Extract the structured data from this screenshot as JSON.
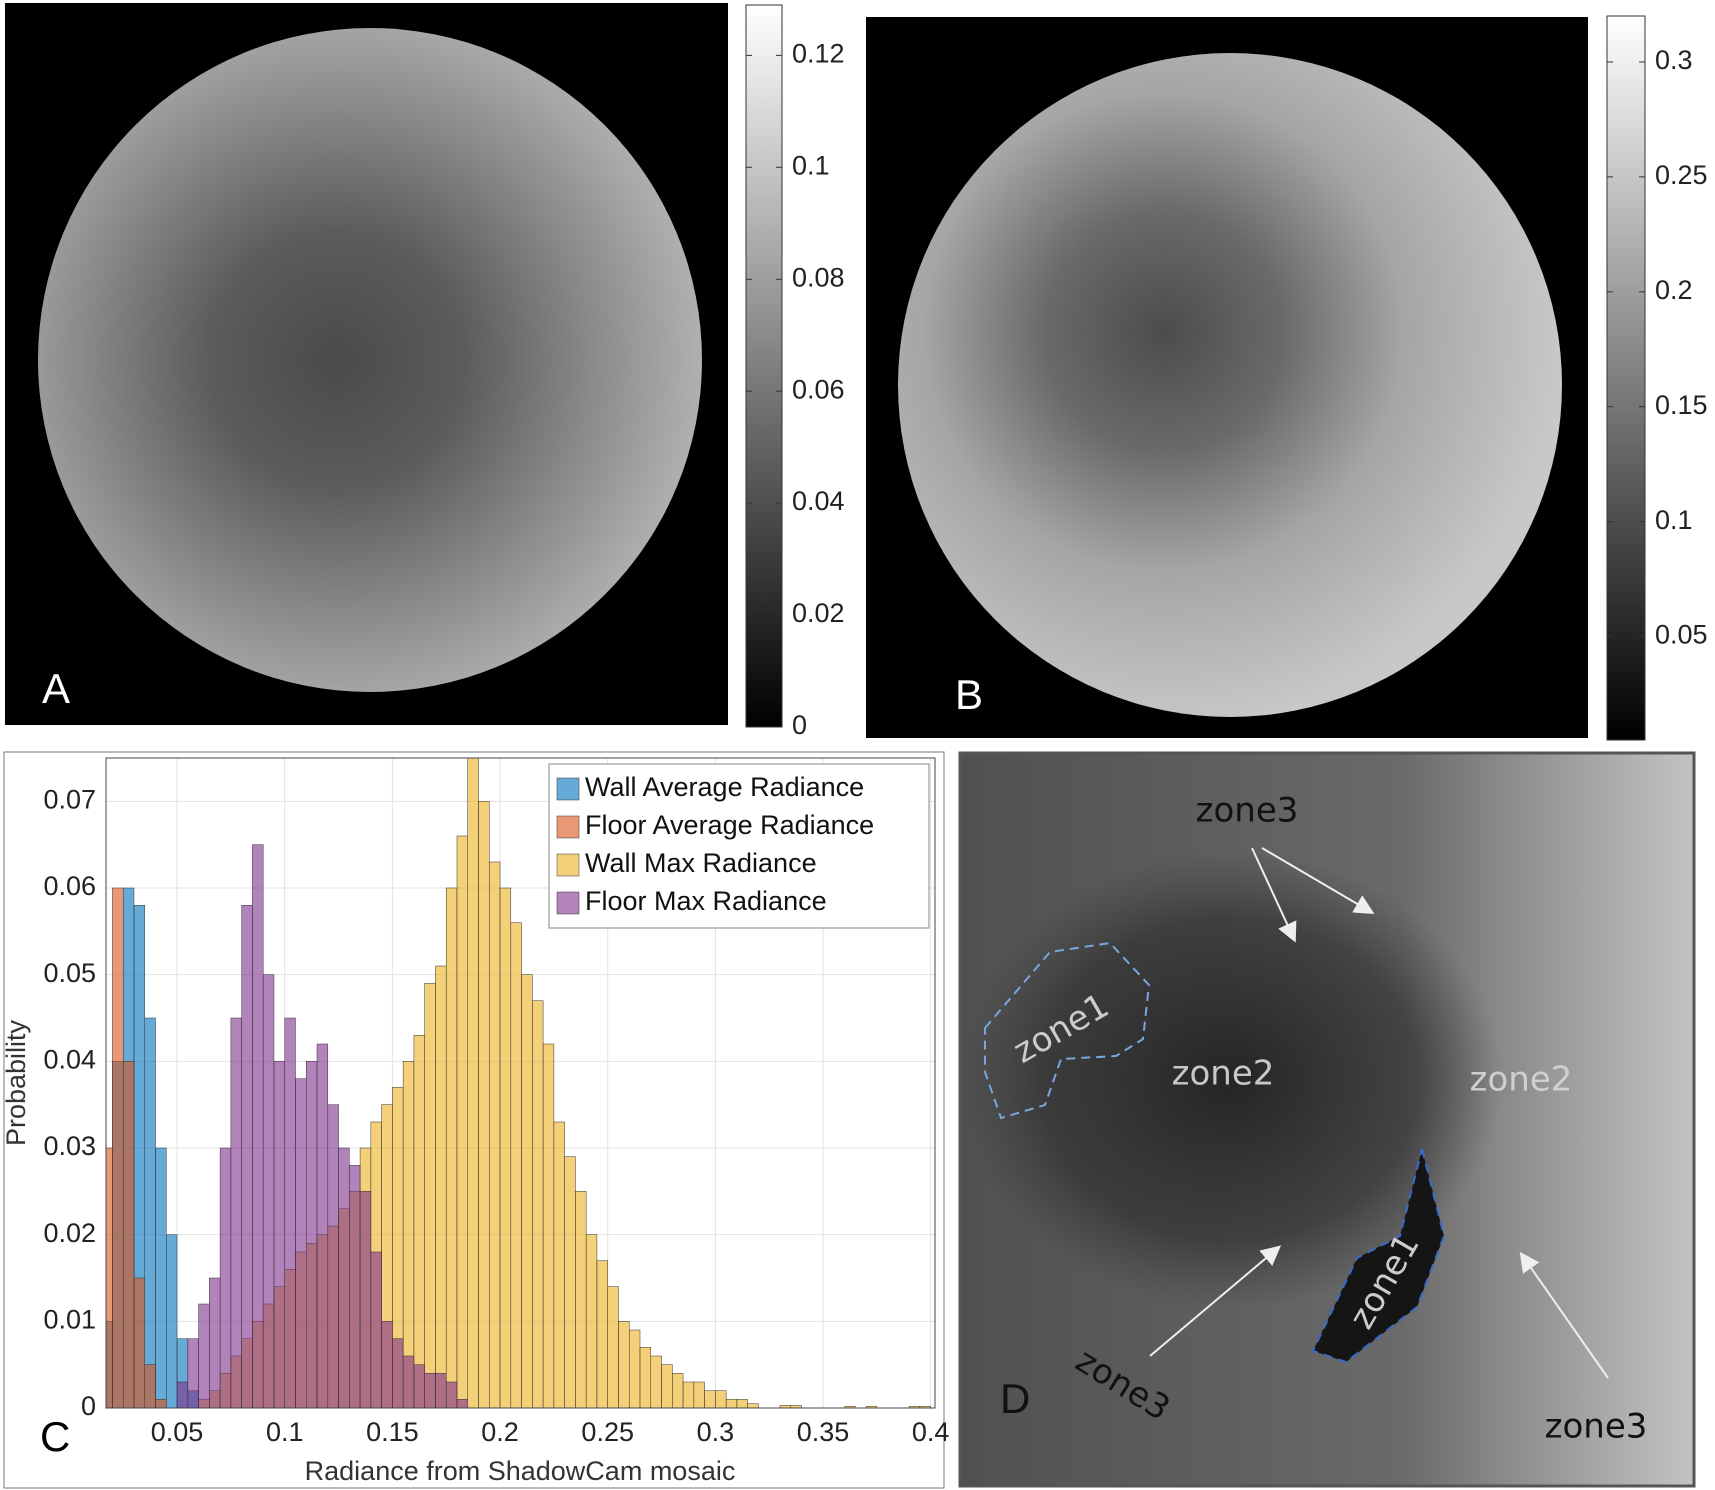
{
  "chart_data": [
    {
      "type": "image",
      "label": "A",
      "colorbar": {
        "ylim": [
          0,
          0.129
        ],
        "yticks": [
          0,
          0.02,
          0.04,
          0.06,
          0.08,
          0.1,
          0.12
        ]
      }
    },
    {
      "type": "image",
      "label": "B",
      "colorbar": {
        "ylim": [
          0.005,
          0.32
        ],
        "yticks": [
          0.05,
          0.1,
          0.15,
          0.2,
          0.25,
          0.3
        ]
      }
    },
    {
      "type": "histogram",
      "label": "C",
      "xlabel": "Radiance from ShadowCam mosaic",
      "ylabel": "Probability",
      "xlim": [
        0.017,
        0.402
      ],
      "ylim": [
        0,
        0.075
      ],
      "xticks": [
        0.05,
        0.1,
        0.15,
        0.2,
        0.25,
        0.3,
        0.35,
        0.4
      ],
      "yticks": [
        0,
        0.01,
        0.02,
        0.03,
        0.04,
        0.05,
        0.06,
        0.07
      ],
      "grid": true,
      "legend": "upper right",
      "bins": [
        0.015,
        0.02,
        0.025,
        0.03,
        0.035,
        0.04,
        0.045,
        0.05,
        0.055,
        0.06,
        0.065,
        0.07,
        0.075,
        0.08,
        0.085,
        0.09,
        0.095,
        0.1,
        0.105,
        0.11,
        0.115,
        0.12,
        0.125,
        0.13,
        0.135,
        0.14,
        0.145,
        0.15,
        0.155,
        0.16,
        0.165,
        0.17,
        0.175,
        0.18,
        0.185,
        0.19,
        0.195,
        0.2,
        0.205,
        0.21,
        0.215,
        0.22,
        0.225,
        0.23,
        0.235,
        0.24,
        0.245,
        0.25,
        0.255,
        0.26,
        0.265,
        0.27,
        0.275,
        0.28,
        0.285,
        0.29,
        0.295,
        0.3,
        0.305,
        0.31,
        0.315,
        0.32,
        0.325,
        0.33,
        0.335,
        0.34,
        0.345,
        0.35,
        0.355,
        0.36,
        0.365,
        0.37,
        0.375,
        0.38,
        0.385,
        0.39,
        0.395,
        0.4
      ],
      "series": [
        {
          "name": "Wall Average Radiance",
          "color": "#0072BD",
          "values": [
            0.01,
            0.04,
            0.06,
            0.058,
            0.045,
            0.03,
            0.02,
            0.008,
            0.002,
            0,
            0,
            0,
            0,
            0,
            0,
            0,
            0,
            0,
            0,
            0,
            0,
            0,
            0,
            0,
            0,
            0,
            0,
            0,
            0,
            0,
            0,
            0,
            0,
            0,
            0,
            0,
            0,
            0,
            0,
            0,
            0,
            0,
            0,
            0,
            0,
            0,
            0,
            0,
            0,
            0,
            0,
            0,
            0,
            0,
            0,
            0,
            0,
            0,
            0,
            0,
            0,
            0,
            0,
            0,
            0,
            0,
            0,
            0,
            0,
            0,
            0,
            0,
            0,
            0,
            0,
            0,
            0
          ]
        },
        {
          "name": "Floor Average Radiance",
          "color": "#D95319",
          "values": [
            0.03,
            0.06,
            0.04,
            0.015,
            0.005,
            0.001,
            0,
            0,
            0,
            0,
            0,
            0,
            0,
            0,
            0,
            0,
            0,
            0,
            0,
            0,
            0,
            0,
            0,
            0,
            0,
            0,
            0,
            0,
            0,
            0,
            0,
            0,
            0,
            0,
            0,
            0,
            0,
            0,
            0,
            0,
            0,
            0,
            0,
            0,
            0,
            0,
            0,
            0,
            0,
            0,
            0,
            0,
            0,
            0,
            0,
            0,
            0,
            0,
            0,
            0,
            0,
            0,
            0,
            0,
            0,
            0,
            0,
            0,
            0,
            0,
            0,
            0,
            0,
            0,
            0,
            0,
            0
          ]
        },
        {
          "name": "Wall Max Radiance",
          "color": "#EDB120",
          "values": [
            0,
            0,
            0,
            0,
            0,
            0,
            0,
            0,
            0,
            0.001,
            0.002,
            0.004,
            0.006,
            0.008,
            0.01,
            0.012,
            0.014,
            0.016,
            0.018,
            0.019,
            0.02,
            0.021,
            0.023,
            0.025,
            0.03,
            0.033,
            0.035,
            0.037,
            0.04,
            0.043,
            0.049,
            0.051,
            0.06,
            0.066,
            0.075,
            0.07,
            0.063,
            0.06,
            0.056,
            0.05,
            0.047,
            0.042,
            0.033,
            0.029,
            0.025,
            0.02,
            0.017,
            0.014,
            0.01,
            0.009,
            0.007,
            0.006,
            0.005,
            0.004,
            0.003,
            0.003,
            0.002,
            0.002,
            0.001,
            0.001,
            0.0005,
            0,
            0,
            0.0003,
            0.0003,
            0,
            0,
            0,
            0,
            0.0002,
            0,
            0.0002,
            0,
            0,
            0,
            0.0002,
            0.0002
          ]
        },
        {
          "name": "Floor Max Radiance",
          "color": "#7E2F8E",
          "values": [
            0,
            0,
            0,
            0,
            0,
            0,
            0,
            0.003,
            0.008,
            0.012,
            0.015,
            0.03,
            0.045,
            0.058,
            0.065,
            0.05,
            0.04,
            0.045,
            0.038,
            0.04,
            0.042,
            0.035,
            0.03,
            0.028,
            0.025,
            0.018,
            0.01,
            0.008,
            0.006,
            0.005,
            0.004,
            0.004,
            0.003,
            0.001,
            0,
            0,
            0,
            0,
            0,
            0,
            0,
            0,
            0,
            0,
            0,
            0,
            0,
            0,
            0,
            0,
            0,
            0,
            0,
            0,
            0,
            0,
            0,
            0,
            0,
            0,
            0,
            0,
            0,
            0,
            0,
            0,
            0,
            0,
            0,
            0,
            0,
            0,
            0,
            0,
            0,
            0,
            0
          ]
        }
      ]
    },
    {
      "type": "image",
      "label": "D",
      "annotations": [
        "zone3",
        "zone1",
        "zone2",
        "zone2",
        "zone1",
        "zone3",
        "zone3"
      ]
    }
  ]
}
